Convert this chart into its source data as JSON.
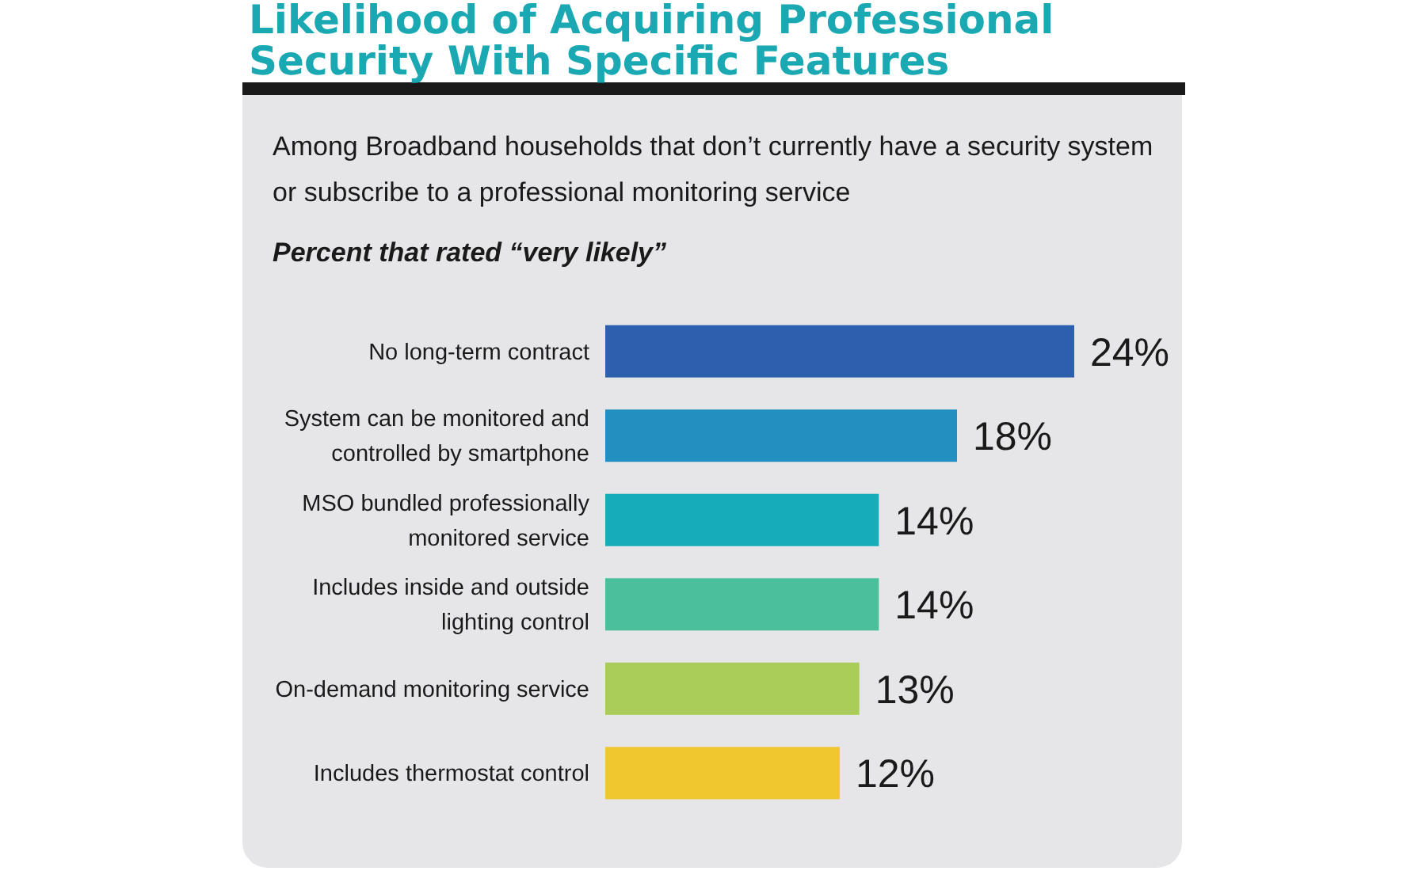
{
  "chart_data": {
    "type": "bar",
    "orientation": "horizontal",
    "title": "Likelihood of Acquiring Professional Security With Specific Features",
    "subtitle": "Among Broadband households that don’t currently have a security system or subscribe to a professional monitoring service",
    "xlabel": "Percent that rated “very likely”",
    "categories": [
      "No long-term contract",
      "System can be monitored and controlled by smartphone",
      "MSO bundled professionally monitored service",
      "Includes inside and outside lighting control",
      "On-demand monitoring service",
      "Includes thermostat control"
    ],
    "values": [
      24,
      18,
      14,
      14,
      13,
      12
    ],
    "colors": [
      "#2c5fad",
      "#2190c0",
      "#16adb8",
      "#4bbf9b",
      "#a9cd58",
      "#f0c72e"
    ],
    "value_labels": [
      "24%",
      "18%",
      "14%",
      "14%",
      "13%",
      "12%"
    ]
  }
}
